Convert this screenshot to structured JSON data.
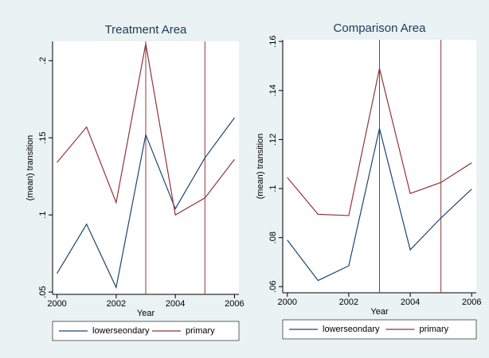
{
  "chart_data": [
    {
      "type": "line",
      "title": "Treatment Area",
      "xlabel": "Year",
      "ylabel": "(mean) transition",
      "x": [
        2000,
        2001,
        2002,
        2003,
        2004,
        2005,
        2006
      ],
      "series": [
        {
          "name": "lowerseondary",
          "color": "#1a476f",
          "values": [
            0.062,
            0.094,
            0.053,
            0.152,
            0.104,
            0.137,
            0.163
          ]
        },
        {
          "name": "primary",
          "color": "#90353b",
          "values": [
            0.134,
            0.157,
            0.108,
            0.211,
            0.1,
            0.111,
            0.136
          ]
        }
      ],
      "vlines": [
        2003,
        2005
      ],
      "vline_color": "#90353b",
      "xlim": [
        1999.85,
        2006.15
      ],
      "xticks": [
        2000,
        2002,
        2004,
        2006
      ],
      "ylim": [
        0.0485,
        0.2125
      ],
      "yticks": [
        {
          "value": 0.05,
          "label": ".05"
        },
        {
          "value": 0.1,
          "label": ".1"
        },
        {
          "value": 0.15,
          "label": ".15"
        },
        {
          "value": 0.2,
          "label": ".2"
        }
      ]
    },
    {
      "type": "line",
      "title": "Comparison Area",
      "xlabel": "Year",
      "ylabel": "(mean) transition",
      "x": [
        2000,
        2001,
        2002,
        2003,
        2004,
        2005,
        2006
      ],
      "series": [
        {
          "name": "lowerseondary",
          "color": "#1a476f",
          "values": [
            0.079,
            0.0625,
            0.0685,
            0.1245,
            0.075,
            0.088,
            0.0998
          ]
        },
        {
          "name": "primary",
          "color": "#90353b",
          "values": [
            0.1045,
            0.0895,
            0.089,
            0.149,
            0.098,
            0.1025,
            0.1105
          ]
        }
      ],
      "vlines": [
        2003,
        2005
      ],
      "vline_color": "#90353b",
      "xlim": [
        1999.85,
        2006.15
      ],
      "xticks": [
        2000,
        2002,
        2004,
        2006
      ],
      "ylim": [
        0.0575,
        0.1607
      ],
      "yticks": [
        {
          "value": 0.06,
          "label": ".06"
        },
        {
          "value": 0.08,
          "label": ".08"
        },
        {
          "value": 0.1,
          "label": ".1"
        },
        {
          "value": 0.12,
          "label": ".12"
        },
        {
          "value": 0.14,
          "label": ".14"
        },
        {
          "value": 0.16,
          "label": ".16"
        }
      ]
    }
  ]
}
